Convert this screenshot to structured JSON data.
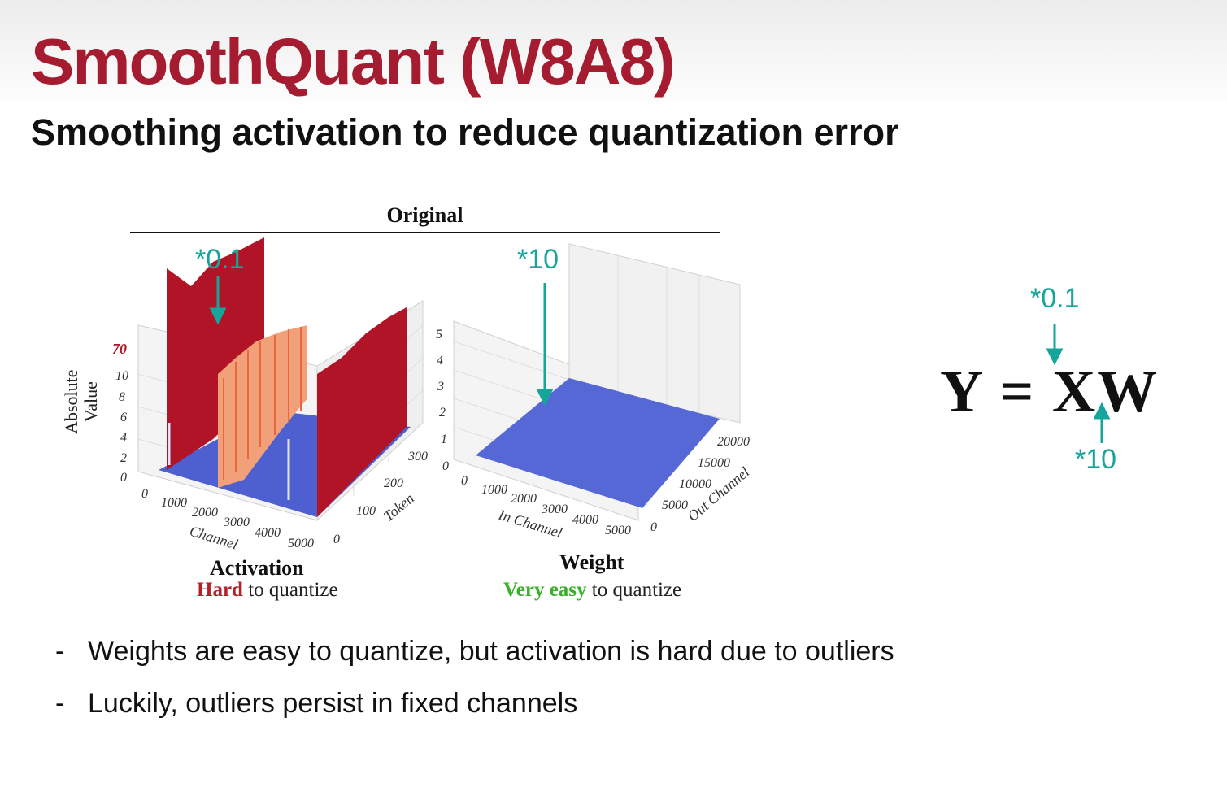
{
  "slide": {
    "title": "SmoothQuant (W8A8)",
    "subtitle": "Smoothing activation to reduce quantization error"
  },
  "figure": {
    "header": "Original",
    "activation_plot": {
      "z_axis_label_line1": "Absolute",
      "z_axis_label_line2": "Value",
      "z_ticks": [
        "0",
        "2",
        "4",
        "6",
        "8",
        "10",
        "70"
      ],
      "channel_ticks": [
        "0",
        "1000",
        "2000",
        "3000",
        "4000",
        "5000"
      ],
      "channel_label": "Channel",
      "token_ticks": [
        "0",
        "100",
        "200",
        "300"
      ],
      "token_label": "Token",
      "scale_annotation": "*0.1",
      "caption_title": "Activation",
      "caption_emph": "Hard",
      "caption_rest": " to quantize"
    },
    "weight_plot": {
      "z_ticks": [
        "0",
        "1",
        "2",
        "3",
        "4",
        "5"
      ],
      "in_channel_ticks": [
        "0",
        "1000",
        "2000",
        "3000",
        "4000",
        "5000"
      ],
      "in_channel_label": "In Channel",
      "out_channel_ticks": [
        "0",
        "5000",
        "10000",
        "15000",
        "20000"
      ],
      "out_channel_label": "Out Channel",
      "scale_annotation": "*10",
      "caption_title": "Weight",
      "caption_emph": "Very easy",
      "caption_rest": " to quantize"
    },
    "colors": {
      "outlier": "#b11426",
      "base": "#5668d6",
      "mid": "#f2a07a",
      "annotation": "#16a59a"
    }
  },
  "equation": {
    "text": "Y = XW",
    "top_annotation": "*0.1",
    "bottom_annotation": "*10"
  },
  "bullets": [
    {
      "dash": "-",
      "text": "Weights are easy to quantize, but activation is hard due to outliers"
    },
    {
      "dash": "-",
      "text": "Luckily, outliers persist in fixed channels"
    }
  ]
}
